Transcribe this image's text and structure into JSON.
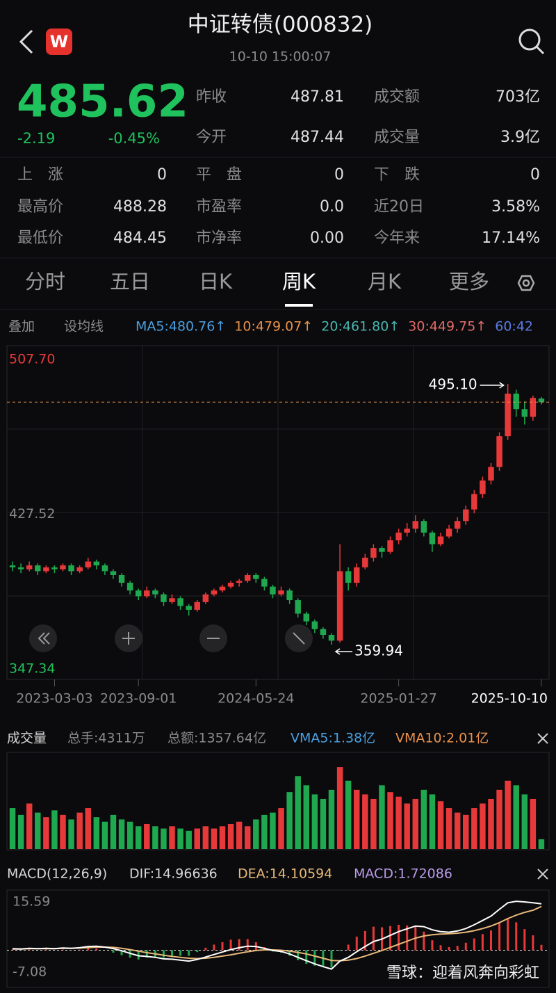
{
  "header": {
    "title": "中证转债(000832)",
    "time": "10-10 15:00:07"
  },
  "quote": {
    "price": "485.62",
    "change": "-2.19",
    "pct": "-0.45%"
  },
  "stats": [
    [
      {
        "label": "昨收",
        "value": "487.81"
      },
      {
        "label": "成交额",
        "value": "703亿"
      }
    ],
    [
      {
        "label": "今开",
        "value": "487.44"
      },
      {
        "label": "成交量",
        "value": "3.9亿"
      }
    ],
    [
      {
        "label": "上　涨",
        "value": "0"
      },
      {
        "label": "平　盘",
        "value": "0"
      },
      {
        "label": "下　跌",
        "value": "0"
      }
    ],
    [
      {
        "label": "最高价",
        "value": "488.28"
      },
      {
        "label": "市盈率",
        "value": "0.0"
      },
      {
        "label": "近20日",
        "value": "3.58%"
      }
    ],
    [
      {
        "label": "最低价",
        "value": "484.45"
      },
      {
        "label": "市净率",
        "value": "0.00"
      },
      {
        "label": "今年来",
        "value": "17.14%"
      }
    ]
  ],
  "tabs": [
    "分时",
    "五日",
    "日K",
    "周K",
    "月K",
    "更多"
  ],
  "active_tab": 3,
  "ma_bar": {
    "overlay": "叠加",
    "setting": "设均线",
    "items": [
      {
        "text": "MA5:480.76↑",
        "color": "#4a9fe0"
      },
      {
        "text": "10:479.07↑",
        "color": "#e8914a"
      },
      {
        "text": "20:461.80↑",
        "color": "#49b6b0"
      },
      {
        "text": "30:449.75↑",
        "color": "#e06a6a"
      },
      {
        "text": "60:42",
        "color": "#5a7be0"
      }
    ]
  },
  "kline": {
    "type": "candlestick",
    "ylim": [
      347.34,
      507.7
    ],
    "yticks": [
      {
        "value": 507.7,
        "label": "507.70"
      },
      427.52,
      347.34
    ],
    "categories": [
      null,
      null,
      null,
      null,
      null,
      "2023-03-03",
      null,
      null,
      null,
      null,
      null,
      null,
      null,
      null,
      null,
      "2023-09-01",
      null,
      null,
      null,
      null,
      null,
      null,
      null,
      null,
      null,
      null,
      null,
      null,
      null,
      "2024-05-24",
      null,
      null,
      null,
      null,
      null,
      null,
      null,
      null,
      null,
      null,
      null,
      null,
      null,
      null,
      null,
      null,
      "2025-01-27",
      null,
      null,
      null,
      null,
      null,
      null,
      null,
      null,
      null,
      null,
      null,
      null,
      null,
      null,
      null,
      null,
      "2025-10-10"
    ],
    "candles": [
      [
        401,
        403,
        398,
        400
      ],
      [
        400,
        402,
        397,
        399
      ],
      [
        399,
        403,
        398,
        401
      ],
      [
        401,
        402,
        396,
        398
      ],
      [
        398,
        401,
        397,
        400
      ],
      [
        400,
        401,
        397,
        399
      ],
      [
        399,
        402,
        398,
        401
      ],
      [
        401,
        402,
        396,
        398
      ],
      [
        398,
        401,
        397,
        400
      ],
      [
        400,
        405,
        399,
        403
      ],
      [
        403,
        404,
        399,
        401
      ],
      [
        401,
        402,
        396,
        398
      ],
      [
        398,
        399,
        394,
        396
      ],
      [
        396,
        397,
        390,
        392
      ],
      [
        392,
        393,
        386,
        388
      ],
      [
        388,
        389,
        383,
        385
      ],
      [
        385,
        390,
        384,
        388
      ],
      [
        388,
        389,
        384,
        386
      ],
      [
        386,
        387,
        380,
        382
      ],
      [
        382,
        386,
        381,
        384
      ],
      [
        384,
        385,
        378,
        380
      ],
      [
        380,
        381,
        375,
        378
      ],
      [
        378,
        383,
        377,
        382
      ],
      [
        382,
        387,
        381,
        386
      ],
      [
        386,
        389,
        385,
        388
      ],
      [
        388,
        391,
        387,
        390
      ],
      [
        390,
        393,
        389,
        392
      ],
      [
        392,
        394,
        390,
        393
      ],
      [
        393,
        397,
        392,
        396
      ],
      [
        396,
        397,
        392,
        394
      ],
      [
        394,
        395,
        388,
        390
      ],
      [
        390,
        391,
        384,
        386
      ],
      [
        386,
        390,
        385,
        388
      ],
      [
        388,
        389,
        381,
        383
      ],
      [
        383,
        384,
        374,
        376
      ],
      [
        376,
        377,
        370,
        372
      ],
      [
        372,
        373,
        366,
        368
      ],
      [
        368,
        369,
        363,
        365
      ],
      [
        365,
        366,
        359.94,
        362
      ],
      [
        362,
        412,
        361,
        398
      ],
      [
        398,
        400,
        388,
        392
      ],
      [
        392,
        402,
        390,
        400
      ],
      [
        400,
        407,
        399,
        405
      ],
      [
        405,
        412,
        403,
        410
      ],
      [
        410,
        411,
        405,
        408
      ],
      [
        408,
        416,
        407,
        414
      ],
      [
        414,
        420,
        412,
        418
      ],
      [
        418,
        423,
        416,
        420
      ],
      [
        420,
        427,
        418,
        424
      ],
      [
        424,
        425,
        416,
        418
      ],
      [
        418,
        419,
        408,
        412
      ],
      [
        412,
        418,
        411,
        416
      ],
      [
        416,
        422,
        415,
        420
      ],
      [
        420,
        426,
        418,
        424
      ],
      [
        424,
        432,
        422,
        430
      ],
      [
        430,
        440,
        428,
        438
      ],
      [
        438,
        447,
        436,
        445
      ],
      [
        445,
        454,
        443,
        452
      ],
      [
        452,
        470,
        450,
        468
      ],
      [
        468,
        495.1,
        466,
        490
      ],
      [
        490,
        492,
        478,
        482
      ],
      [
        482,
        486,
        474,
        478
      ],
      [
        478,
        489,
        476,
        487.81
      ],
      [
        487.44,
        488.28,
        484.45,
        485.62
      ]
    ],
    "annotations": {
      "high": "495.10",
      "low": "359.94"
    }
  },
  "volume": {
    "title": "成交量",
    "total_hand": "总手:4311万",
    "total_amount": "总额:1357.64亿",
    "vma5": "VMA5:1.38亿",
    "vma10": "VMA10:2.01亿",
    "ylim": [
      0,
      4
    ],
    "values": [
      1.8,
      1.5,
      2.0,
      1.6,
      1.4,
      1.7,
      1.5,
      1.3,
      1.6,
      1.8,
      1.4,
      1.2,
      1.5,
      1.3,
      1.2,
      1.0,
      1.1,
      1.0,
      0.9,
      1.0,
      0.9,
      0.8,
      0.9,
      1.0,
      0.9,
      1.0,
      1.1,
      1.2,
      1.0,
      1.3,
      1.5,
      1.6,
      1.8,
      2.5,
      3.2,
      2.8,
      2.4,
      2.2,
      2.6,
      3.6,
      3.0,
      2.6,
      2.4,
      2.2,
      2.8,
      2.5,
      2.3,
      2.0,
      2.2,
      2.6,
      2.4,
      2.1,
      1.8,
      1.6,
      1.5,
      1.8,
      2.0,
      2.2,
      2.6,
      3.0,
      2.8,
      2.4,
      2.2,
      0.43
    ]
  },
  "macd": {
    "title": "MACD(12,26,9)",
    "dif_label": "DIF:14.96636",
    "dea_label": "DEA:14.10594",
    "macd_label": "MACD:1.72086",
    "ylim": [
      -7.08,
      15.59
    ],
    "yticks": [
      15.59,
      -7.08
    ],
    "dif": [
      0.5,
      0.4,
      0.6,
      0.5,
      0.6,
      0.5,
      0.7,
      0.6,
      0.8,
      1.2,
      1.3,
      1.0,
      0.5,
      -0.2,
      -1.0,
      -1.8,
      -2.0,
      -2.3,
      -2.8,
      -2.9,
      -3.2,
      -3.5,
      -3.0,
      -2.2,
      -1.4,
      -0.6,
      0.2,
      0.8,
      1.3,
      1.2,
      0.6,
      -0.1,
      -0.4,
      -1.2,
      -2.3,
      -3.4,
      -4.4,
      -5.3,
      -6.1,
      -3.5,
      -2.3,
      -0.5,
      1.2,
      2.8,
      3.6,
      4.8,
      6.0,
      6.9,
      7.8,
      7.6,
      6.6,
      6.0,
      5.8,
      6.2,
      7.0,
      8.2,
      9.6,
      11.0,
      13.2,
      15.3,
      15.8,
      15.6,
      15.3,
      14.97
    ],
    "dea": [
      0.4,
      0.4,
      0.5,
      0.5,
      0.5,
      0.5,
      0.6,
      0.6,
      0.7,
      0.8,
      1.0,
      1.0,
      0.9,
      0.6,
      0.2,
      -0.3,
      -0.8,
      -1.2,
      -1.6,
      -2.0,
      -2.3,
      -2.6,
      -2.7,
      -2.6,
      -2.3,
      -1.9,
      -1.5,
      -1.0,
      -0.5,
      -0.1,
      0.1,
      0.1,
      0.0,
      -0.3,
      -0.7,
      -1.2,
      -1.9,
      -2.6,
      -3.3,
      -3.4,
      -3.2,
      -2.7,
      -1.9,
      -1.0,
      -0.1,
      0.9,
      1.9,
      2.9,
      3.9,
      4.6,
      5.0,
      5.2,
      5.3,
      5.5,
      5.8,
      6.3,
      7.0,
      7.8,
      8.9,
      10.2,
      11.3,
      12.2,
      12.9,
      14.11
    ],
    "hist": [
      0.2,
      0,
      0.2,
      0,
      0.2,
      0,
      0.2,
      0,
      0.2,
      0.8,
      0.6,
      0,
      -0.8,
      -1.6,
      -2.4,
      -3.0,
      -2.4,
      -2.2,
      -2.4,
      -1.8,
      -1.8,
      -1.8,
      -0.6,
      0.8,
      1.8,
      2.6,
      3.4,
      3.6,
      3.6,
      2.6,
      1.0,
      -0.4,
      -0.8,
      -1.8,
      -3.2,
      -4.4,
      -5.0,
      -5.4,
      -5.6,
      -0.2,
      1.8,
      4.4,
      6.2,
      7.6,
      7.4,
      7.8,
      8.2,
      8.0,
      7.8,
      6.0,
      3.2,
      1.6,
      1.0,
      1.4,
      2.4,
      3.8,
      5.2,
      6.4,
      8.6,
      10.2,
      9.0,
      6.8,
      4.8,
      1.72
    ]
  },
  "watermark": "雪球：迎着风奔向彩虹"
}
